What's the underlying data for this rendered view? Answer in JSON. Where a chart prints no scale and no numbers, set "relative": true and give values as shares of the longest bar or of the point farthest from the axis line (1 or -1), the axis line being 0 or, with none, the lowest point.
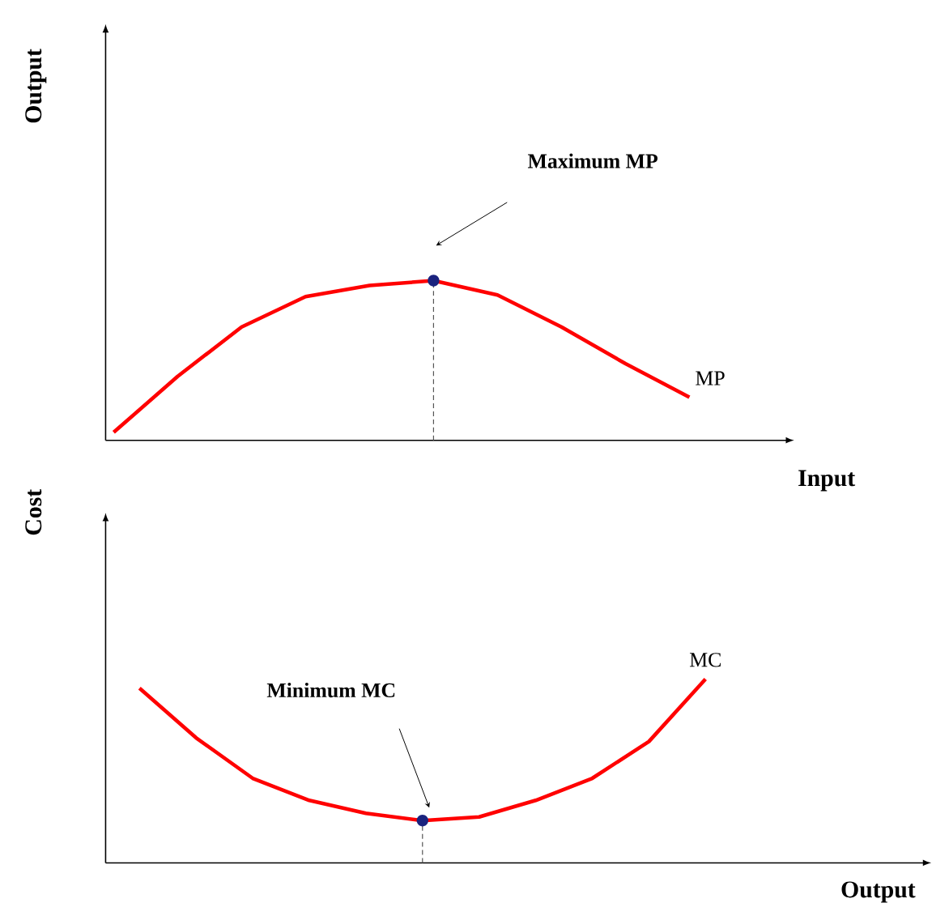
{
  "chart_data": [
    {
      "type": "line",
      "relative": true,
      "xlabel": "Input",
      "ylabel": "Output",
      "annotations": [
        "Maximum MP"
      ],
      "categories": [
        null,
        null,
        null,
        null,
        null,
        null,
        null,
        null,
        null,
        null
      ],
      "series": [
        {
          "name": "MP",
          "color": "#ff0000",
          "values": [
            0.05,
            0.4,
            0.71,
            0.9,
            0.97,
            1.0,
            0.91,
            0.71,
            0.48,
            0.27
          ]
        }
      ]
    },
    {
      "type": "line",
      "relative": true,
      "xlabel": "Output",
      "ylabel": "Cost",
      "annotations": [
        "Minimum MC"
      ],
      "categories": [
        null,
        null,
        null,
        null,
        null,
        null,
        null,
        null,
        null,
        null,
        null
      ],
      "series": [
        {
          "name": "MC",
          "color": "#ff0000",
          "values": [
            0.95,
            0.68,
            0.46,
            0.34,
            0.27,
            0.23,
            0.25,
            0.34,
            0.46,
            0.66,
            1.0
          ]
        }
      ]
    }
  ]
}
